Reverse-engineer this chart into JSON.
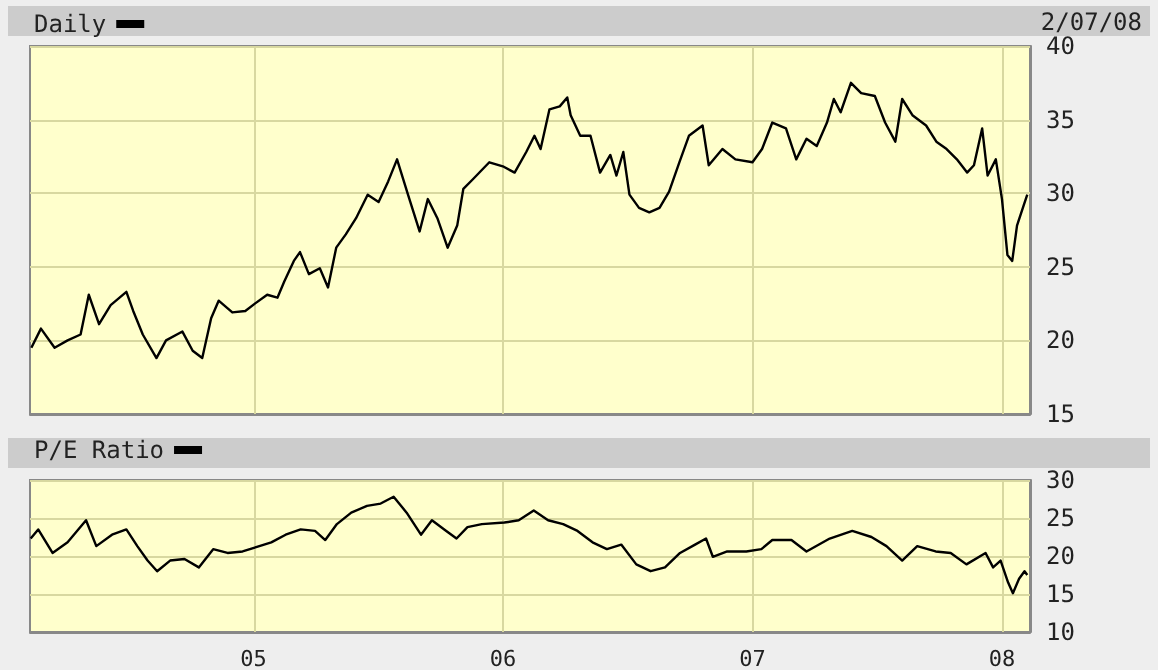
{
  "chart_data": [
    {
      "type": "line",
      "x": [
        "2004-02-11",
        "2004-02-25",
        "2004-03-16",
        "2004-04-04",
        "2004-04-23",
        "2004-05-05",
        "2004-05-20",
        "2004-06-06",
        "2004-06-29",
        "2004-07-09",
        "2004-07-23",
        "2004-08-12",
        "2004-08-26",
        "2004-09-19",
        "2004-10-04",
        "2004-10-18",
        "2004-10-31",
        "2004-11-11",
        "2004-12-01",
        "2004-12-20",
        "2005-01-03",
        "2005-01-21",
        "2005-02-05",
        "2005-02-15",
        "2005-03-01",
        "2005-03-10",
        "2005-03-23",
        "2005-04-08",
        "2005-04-20",
        "2005-05-02",
        "2005-05-16",
        "2005-05-31",
        "2005-06-17",
        "2005-07-03",
        "2005-07-17",
        "2005-07-30",
        "2005-08-15",
        "2005-09-01",
        "2005-09-13",
        "2005-09-27",
        "2005-10-12",
        "2005-10-26",
        "2005-11-04",
        "2005-11-19",
        "2005-12-12",
        "2006-01-02",
        "2006-01-18",
        "2006-02-04",
        "2006-02-16",
        "2006-02-25",
        "2006-03-10",
        "2006-03-25",
        "2006-04-05",
        "2006-04-10",
        "2006-04-24",
        "2006-05-09",
        "2006-05-23",
        "2006-06-07",
        "2006-06-16",
        "2006-06-26",
        "2006-07-05",
        "2006-07-19",
        "2006-08-03",
        "2006-08-18",
        "2006-09-01",
        "2006-09-16",
        "2006-09-30",
        "2006-10-20",
        "2006-10-29",
        "2006-11-18",
        "2006-12-07",
        "2007-01-01",
        "2007-01-15",
        "2007-01-30",
        "2007-02-19",
        "2007-03-06",
        "2007-03-21",
        "2007-04-05",
        "2007-04-20",
        "2007-04-30",
        "2007-05-10",
        "2007-05-25",
        "2007-06-09",
        "2007-06-29",
        "2007-07-14",
        "2007-07-29",
        "2007-08-08",
        "2007-08-23",
        "2007-09-12",
        "2007-09-27",
        "2007-10-12",
        "2007-10-27",
        "2007-11-11",
        "2007-11-21",
        "2007-12-03",
        "2007-12-11",
        "2007-12-23",
        "2008-01-01",
        "2008-01-09",
        "2008-01-16",
        "2008-01-23",
        "2008-02-02",
        "2008-02-07"
      ],
      "series": [
        {
          "name": "Daily",
          "color": "#000000",
          "values": [
            19.5,
            20.8,
            19.5,
            20.0,
            20.4,
            23.1,
            21.1,
            22.4,
            23.3,
            22.0,
            20.4,
            18.8,
            20.0,
            20.6,
            19.3,
            18.8,
            21.5,
            22.7,
            21.9,
            22.0,
            22.5,
            23.1,
            22.9,
            24.0,
            25.4,
            26.0,
            24.5,
            24.9,
            23.6,
            26.3,
            27.2,
            28.3,
            29.9,
            29.4,
            30.8,
            32.3,
            29.9,
            27.4,
            29.6,
            28.3,
            26.3,
            27.8,
            30.3,
            31.0,
            32.1,
            31.8,
            31.4,
            32.8,
            33.9,
            33.0,
            35.7,
            35.9,
            36.5,
            35.3,
            33.9,
            33.9,
            31.4,
            32.6,
            31.2,
            32.8,
            29.9,
            29.0,
            28.7,
            29.0,
            30.1,
            32.1,
            33.9,
            34.6,
            31.9,
            33.0,
            32.3,
            32.1,
            33.0,
            34.8,
            34.4,
            32.3,
            33.7,
            33.2,
            34.8,
            36.4,
            35.5,
            37.5,
            36.8,
            36.6,
            34.8,
            33.5,
            36.4,
            35.3,
            34.6,
            33.5,
            33.0,
            32.3,
            31.4,
            31.9,
            34.4,
            31.2,
            32.3,
            29.6,
            25.8,
            25.4,
            27.8,
            29.2,
            29.9
          ]
        }
      ],
      "xlim": [
        "2004-02-09",
        "2008-02-11"
      ],
      "xticks": [
        {
          "value": "2005-01-01",
          "label": null
        },
        {
          "value": "2006-01-01",
          "label": null
        },
        {
          "value": "2007-01-01",
          "label": null
        },
        {
          "value": "2008-01-01",
          "label": null
        }
      ],
      "ylim": [
        15,
        40
      ],
      "yticks": [
        15,
        20,
        25,
        30,
        35,
        40
      ],
      "tick_labels": "y",
      "grid": true,
      "legend": "top left",
      "annotations": [
        "2/07/08"
      ]
    },
    {
      "type": "line",
      "x": [
        "2004-02-10",
        "2004-02-21",
        "2004-03-13",
        "2004-04-04",
        "2004-05-01",
        "2004-05-16",
        "2004-06-08",
        "2004-06-29",
        "2004-07-15",
        "2004-07-30",
        "2004-08-13",
        "2004-09-01",
        "2004-09-22",
        "2004-10-13",
        "2004-11-03",
        "2004-11-24",
        "2004-12-16",
        "2005-01-06",
        "2005-01-27",
        "2005-02-17",
        "2005-03-11",
        "2005-04-01",
        "2005-04-16",
        "2005-05-03",
        "2005-05-24",
        "2005-06-16",
        "2005-07-06",
        "2005-07-25",
        "2005-08-13",
        "2005-09-03",
        "2005-09-19",
        "2005-10-10",
        "2005-10-25",
        "2005-11-10",
        "2005-12-01",
        "2006-01-03",
        "2006-01-24",
        "2006-02-15",
        "2006-03-08",
        "2006-03-30",
        "2006-04-20",
        "2006-05-12",
        "2006-06-02",
        "2006-06-23",
        "2006-07-15",
        "2006-08-05",
        "2006-08-26",
        "2006-09-17",
        "2006-10-09",
        "2006-10-25",
        "2006-11-04",
        "2006-11-25",
        "2006-12-23",
        "2007-01-14",
        "2007-01-30",
        "2007-02-27",
        "2007-03-21",
        "2007-04-24",
        "2007-05-27",
        "2007-06-24",
        "2007-07-16",
        "2007-08-08",
        "2007-08-30",
        "2007-09-26",
        "2007-10-18",
        "2007-11-10",
        "2007-12-08",
        "2007-12-19",
        "2007-12-30",
        "2008-01-10",
        "2008-01-17",
        "2008-01-26",
        "2008-02-03",
        "2008-02-07"
      ],
      "series": [
        {
          "name": "P/E Ratio",
          "color": "#000000",
          "values": [
            22.3,
            23.5,
            20.4,
            21.8,
            24.7,
            21.3,
            22.8,
            23.5,
            21.3,
            19.4,
            18.0,
            19.4,
            19.6,
            18.5,
            20.9,
            20.4,
            20.6,
            21.2,
            21.8,
            22.8,
            23.5,
            23.3,
            22.1,
            24.2,
            25.7,
            26.6,
            26.9,
            27.8,
            25.7,
            22.8,
            24.7,
            23.3,
            22.3,
            23.8,
            24.2,
            24.4,
            24.7,
            26.0,
            24.7,
            24.2,
            23.3,
            21.8,
            20.9,
            21.5,
            18.9,
            18.0,
            18.5,
            20.4,
            21.5,
            22.3,
            19.9,
            20.6,
            20.6,
            20.9,
            22.1,
            22.1,
            20.6,
            22.3,
            23.3,
            22.5,
            21.3,
            19.4,
            21.3,
            20.6,
            20.4,
            18.9,
            20.4,
            18.5,
            19.4,
            16.5,
            15.1,
            17.0,
            18.0,
            17.5
          ]
        }
      ],
      "xlim": [
        "2004-02-09",
        "2008-02-11"
      ],
      "xticks": [
        {
          "value": "2005-01-01",
          "label": "05"
        },
        {
          "value": "2006-01-01",
          "label": "06"
        },
        {
          "value": "2007-01-01",
          "label": "07"
        },
        {
          "value": "2008-01-01",
          "label": "08"
        }
      ],
      "ylim": [
        10,
        30
      ],
      "yticks": [
        10,
        15,
        20,
        25,
        30
      ],
      "grid": true,
      "legend": "top left"
    }
  ]
}
